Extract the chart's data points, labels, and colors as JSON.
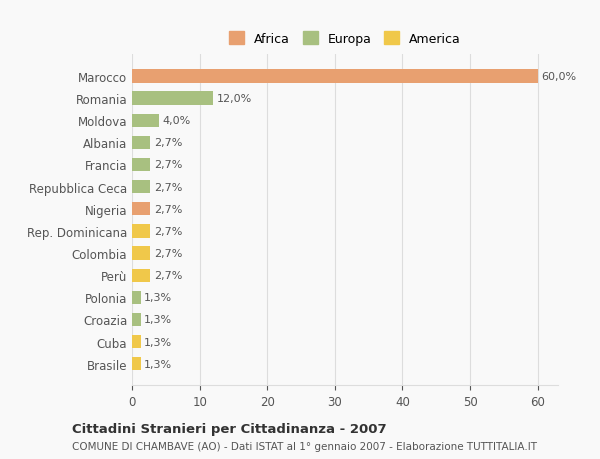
{
  "categories": [
    "Brasile",
    "Cuba",
    "Croazia",
    "Polonia",
    "Perù",
    "Colombia",
    "Rep. Dominicana",
    "Nigeria",
    "Repubblica Ceca",
    "Francia",
    "Albania",
    "Moldova",
    "Romania",
    "Marocco"
  ],
  "values": [
    1.3,
    1.3,
    1.3,
    1.3,
    2.7,
    2.7,
    2.7,
    2.7,
    2.7,
    2.7,
    2.7,
    4.0,
    12.0,
    60.0
  ],
  "colors": [
    "#f0c84a",
    "#f0c84a",
    "#a8c080",
    "#a8c080",
    "#f0c84a",
    "#f0c84a",
    "#f0c84a",
    "#e8a070",
    "#a8c080",
    "#a8c080",
    "#a8c080",
    "#a8c080",
    "#a8c080",
    "#e8a070"
  ],
  "labels": [
    "1,3%",
    "1,3%",
    "1,3%",
    "1,3%",
    "2,7%",
    "2,7%",
    "2,7%",
    "2,7%",
    "2,7%",
    "2,7%",
    "2,7%",
    "4,0%",
    "12,0%",
    "60,0%"
  ],
  "legend": [
    {
      "label": "Africa",
      "color": "#e8a070"
    },
    {
      "label": "Europa",
      "color": "#a8c080"
    },
    {
      "label": "America",
      "color": "#f0c84a"
    }
  ],
  "title": "Cittadini Stranieri per Cittadinanza - 2007",
  "subtitle": "COMUNE DI CHAMBAVE (AO) - Dati ISTAT al 1° gennaio 2007 - Elaborazione TUTTITALIA.IT",
  "xlim": [
    0,
    63
  ],
  "background_color": "#f9f9f9",
  "grid_color": "#dddddd"
}
